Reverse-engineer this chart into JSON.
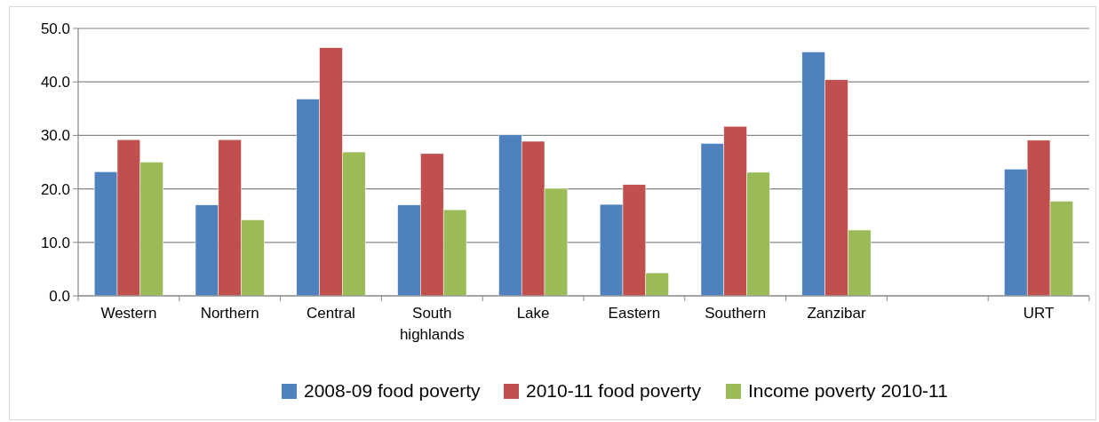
{
  "chart_data": {
    "type": "bar",
    "categories": [
      "Western",
      "Northern",
      "Central",
      "South highlands",
      "Lake",
      "Eastern",
      "Southern",
      "Zanzibar",
      null,
      "URT"
    ],
    "series": [
      {
        "name": "2008-09 food poverty",
        "color": "#4f81bd",
        "values": [
          23.2,
          17.0,
          36.8,
          17.0,
          30.1,
          17.1,
          28.5,
          45.6,
          null,
          23.7
        ]
      },
      {
        "name": "2010-11 food poverty",
        "color": "#c0504d",
        "values": [
          29.2,
          29.2,
          46.4,
          26.6,
          28.9,
          20.8,
          31.7,
          40.4,
          null,
          29.1
        ]
      },
      {
        "name": "Income poverty 2010-11",
        "color": "#9bbb59",
        "values": [
          25.0,
          14.2,
          26.9,
          16.1,
          20.1,
          4.3,
          23.1,
          12.3,
          null,
          17.7
        ]
      }
    ],
    "ylim": [
      0,
      50
    ],
    "yticks": [
      {
        "value": 0,
        "label": "0.0"
      },
      {
        "value": 10,
        "label": "10.0"
      },
      {
        "value": 20,
        "label": "20.0"
      },
      {
        "value": 30,
        "label": "30.0"
      },
      {
        "value": 40,
        "label": "40.0"
      },
      {
        "value": 50,
        "label": "50.0"
      }
    ],
    "grid": "y",
    "legend": "bottom"
  }
}
